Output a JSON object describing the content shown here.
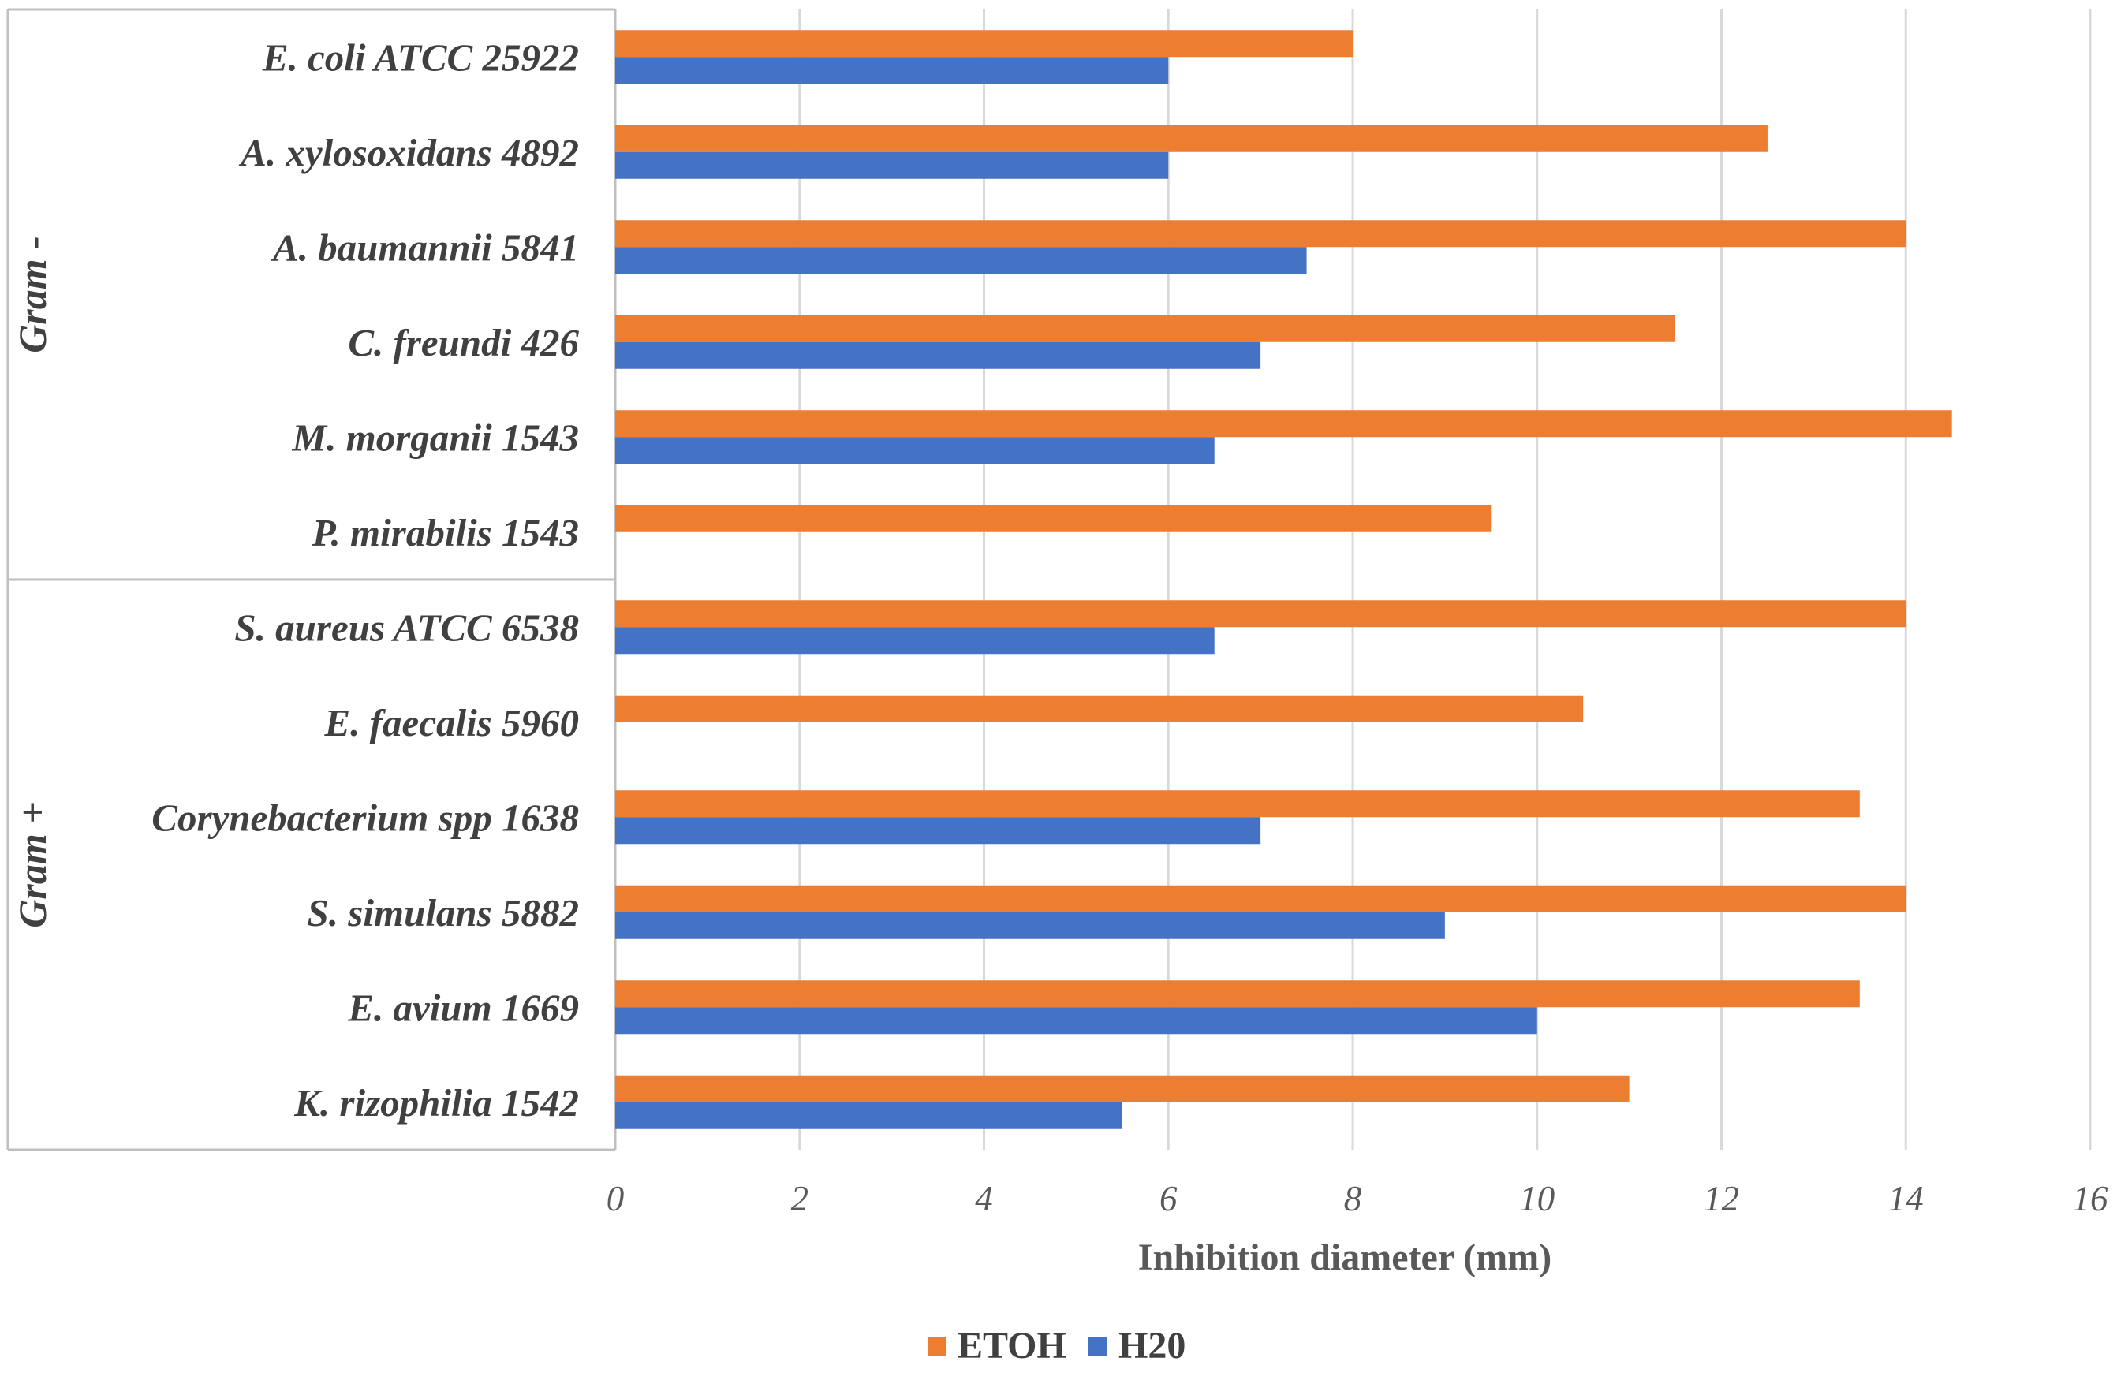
{
  "chart_data": {
    "type": "bar",
    "orientation": "horizontal",
    "title": "",
    "xlabel": "Inhibition diameter (mm)",
    "ylabel": "",
    "xlim": [
      0,
      16
    ],
    "x_ticks": [
      "0",
      "2",
      "4",
      "6",
      "8",
      "10",
      "12",
      "14",
      "16"
    ],
    "grid": "vertical",
    "legend": "bottom",
    "categories": [
      "E. coli ATCC 25922",
      "A. xylosoxidans 4892",
      "A. baumannii 5841",
      "C. freundi 426",
      "M. morganii 1543",
      "P. mirabilis 1543",
      "S. aureus ATCC 6538",
      "E. faecalis 5960",
      "Corynebacterium spp 1638",
      "S. simulans 5882",
      "E. avium 1669",
      "K. rizophilia 1542"
    ],
    "groups": [
      {
        "label": "Gram -",
        "categories": 6
      },
      {
        "label": "Gram +",
        "categories": 6
      }
    ],
    "series": [
      {
        "name": "ETOH",
        "color": "#ED7D31",
        "values": [
          8,
          12.5,
          14,
          11.5,
          14.5,
          9.5,
          14,
          10.5,
          13.5,
          14,
          13.5,
          11
        ]
      },
      {
        "name": "H20",
        "color": "#4472C4",
        "values": [
          6,
          6,
          7.5,
          7,
          6.5,
          0,
          6.5,
          0,
          7,
          9,
          10,
          5.5
        ]
      }
    ]
  }
}
